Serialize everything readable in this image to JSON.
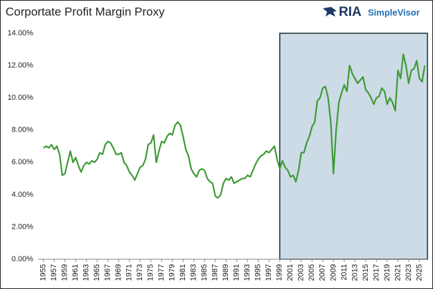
{
  "chart_data": {
    "type": "line",
    "title": "Corportate Profit Margin Proxy",
    "logo": {
      "primary": "RIA",
      "secondary": "SimpleVisor"
    },
    "x": [
      1955,
      1955.5,
      1956,
      1956.5,
      1957,
      1957.5,
      1958,
      1958.5,
      1959,
      1959.5,
      1960,
      1960.5,
      1961,
      1961.5,
      1962,
      1962.5,
      1963,
      1963.5,
      1964,
      1964.5,
      1965,
      1965.5,
      1966,
      1966.5,
      1967,
      1967.5,
      1968,
      1968.5,
      1969,
      1969.5,
      1970,
      1970.5,
      1971,
      1971.5,
      1972,
      1972.5,
      1973,
      1973.5,
      1974,
      1974.5,
      1975,
      1975.5,
      1976,
      1976.5,
      1977,
      1977.5,
      1978,
      1978.5,
      1979,
      1979.5,
      1980,
      1980.5,
      1981,
      1981.5,
      1982,
      1982.5,
      1983,
      1983.5,
      1984,
      1984.5,
      1985,
      1985.5,
      1986,
      1986.5,
      1987,
      1987.5,
      1988,
      1988.5,
      1989,
      1989.5,
      1990,
      1990.5,
      1991,
      1991.5,
      1992,
      1992.5,
      1993,
      1993.5,
      1994,
      1994.5,
      1995,
      1995.5,
      1996,
      1996.5,
      1997,
      1997.5,
      1998,
      1998.5,
      1999,
      1999.5,
      2000,
      2000.5,
      2001,
      2001.5,
      2002,
      2002.5,
      2003,
      2003.5,
      2004,
      2004.5,
      2005,
      2005.5,
      2006,
      2006.5,
      2007,
      2007.5,
      2008,
      2008.5,
      2009,
      2009.5,
      2010,
      2010.5,
      2011,
      2011.5,
      2012,
      2012.5,
      2013,
      2013.5,
      2014,
      2014.5,
      2015,
      2015.5,
      2016,
      2016.5,
      2017,
      2017.5,
      2018,
      2018.5,
      2019,
      2019.5,
      2020,
      2020.5,
      2021,
      2021.5,
      2022,
      2022.5,
      2023,
      2023.5,
      2024,
      2024.5,
      2025,
      2025.5,
      2026
    ],
    "series": [
      {
        "color": "#3e9a35",
        "values": [
          6.9,
          7.0,
          6.9,
          7.1,
          6.8,
          7.0,
          6.5,
          5.2,
          5.3,
          6.0,
          6.7,
          6.0,
          6.3,
          5.8,
          5.4,
          5.8,
          6.0,
          5.9,
          6.1,
          6.0,
          6.2,
          6.6,
          6.5,
          7.1,
          7.3,
          7.2,
          6.9,
          6.5,
          6.5,
          6.6,
          6.0,
          5.8,
          5.4,
          5.2,
          4.9,
          5.3,
          5.7,
          5.8,
          6.2,
          7.1,
          7.2,
          7.7,
          6.0,
          6.7,
          7.3,
          7.2,
          7.6,
          7.8,
          7.7,
          8.3,
          8.5,
          8.3,
          7.6,
          6.8,
          6.4,
          5.6,
          5.3,
          5.1,
          5.5,
          5.6,
          5.5,
          5.0,
          4.8,
          4.7,
          3.9,
          3.8,
          4.0,
          4.7,
          5.0,
          4.9,
          5.1,
          4.7,
          4.8,
          4.9,
          5.0,
          5.0,
          5.2,
          5.1,
          5.5,
          5.9,
          6.2,
          6.4,
          6.5,
          6.7,
          6.6,
          6.8,
          7.0,
          6.2,
          5.6,
          6.1,
          5.7,
          5.5,
          5.1,
          5.2,
          4.8,
          5.5,
          6.6,
          6.6,
          7.2,
          7.6,
          8.2,
          8.5,
          9.8,
          10.0,
          10.6,
          10.7,
          10.0,
          8.5,
          5.3,
          8.0,
          9.7,
          10.3,
          10.8,
          10.4,
          12.0,
          11.5,
          11.2,
          10.9,
          11.1,
          11.3,
          10.5,
          10.3,
          10.0,
          9.6,
          10.0,
          10.1,
          10.6,
          10.4,
          9.6,
          10.0,
          9.7,
          9.2,
          11.7,
          11.2,
          12.7,
          12.0,
          10.9,
          11.7,
          11.8,
          12.3,
          11.2,
          11.0,
          12.0
        ]
      }
    ],
    "xlim": [
      1954,
      2026.5
    ],
    "xticks": [
      1955,
      1957,
      1959,
      1961,
      1963,
      1965,
      1967,
      1969,
      1971,
      1973,
      1975,
      1977,
      1979,
      1981,
      1983,
      1985,
      1987,
      1989,
      1991,
      1993,
      1995,
      1997,
      1999,
      2001,
      2003,
      2005,
      2007,
      2009,
      2011,
      2013,
      2015,
      2017,
      2019,
      2021,
      2023,
      2025
    ],
    "ylim": [
      0,
      14
    ],
    "yticks": [
      {
        "value": 0,
        "label": "0.00%"
      },
      {
        "value": 2,
        "label": "2.00%"
      },
      {
        "value": 4,
        "label": "4.00%"
      },
      {
        "value": 6,
        "label": "6.00%"
      },
      {
        "value": 8,
        "label": "8.00%"
      },
      {
        "value": 10,
        "label": "10.00%"
      },
      {
        "value": 12,
        "label": "12.00%"
      },
      {
        "value": 14,
        "label": "14.00%"
      }
    ],
    "highlight_x": [
      1999,
      2026.5
    ],
    "highlight_color": "#ccdbe5"
  }
}
